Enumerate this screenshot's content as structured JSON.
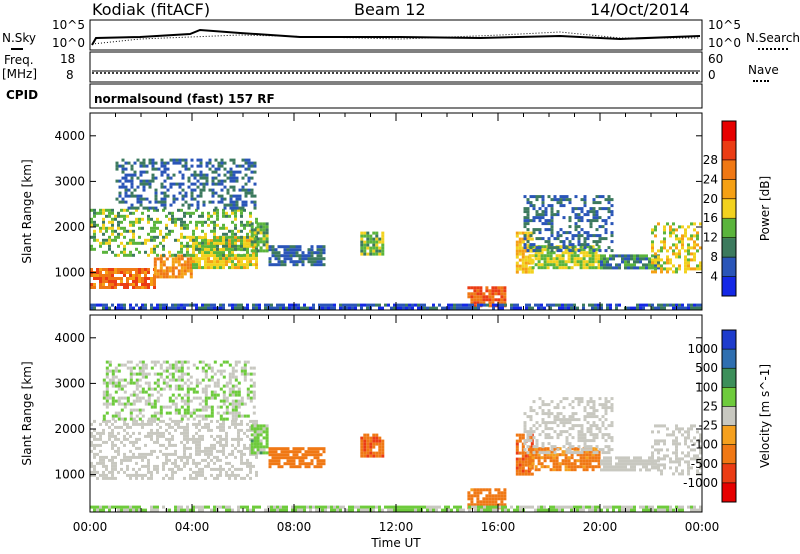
{
  "header": {
    "station": "Kodiak (fitACF)",
    "beam": "Beam 12",
    "date": "14/Oct/2014"
  },
  "status_panel": {
    "left_labels": {
      "nsky": "N.Sky",
      "freq": "Freq.",
      "freq_unit": "[MHz]",
      "cpid": "CPID"
    },
    "right_labels": {
      "nsearch": "N.Search",
      "nave": "Nave"
    },
    "noise_left_ticks": [
      "10^5",
      "10^0"
    ],
    "noise_right_ticks": [
      "10^5",
      "10^0"
    ],
    "freq_left_ticks": [
      "18",
      "8"
    ],
    "nave_right_ticks": [
      "60",
      "0"
    ],
    "cpid_text": "normalsound (fast) 157 RF"
  },
  "chart_data": [
    {
      "type": "heatmap",
      "name": "power",
      "ylabel": "Slant Range [km]",
      "xlabel": "",
      "xlim": [
        "00:00",
        "24:00"
      ],
      "ylim": [
        180,
        4500
      ],
      "y_ticks": [
        1000,
        2000,
        3000,
        4000
      ],
      "colorbar": {
        "label": "Power [dB]",
        "ticks": [
          "4",
          "8",
          "12",
          "16",
          "20",
          "24",
          "28"
        ],
        "colors": [
          "#1428e6",
          "#2a55b8",
          "#3c7a5e",
          "#5ab43c",
          "#f2d21e",
          "#f5a014",
          "#f07814",
          "#eb3c14",
          "#e60000"
        ]
      },
      "regions": [
        {
          "t": [
            0.0,
            2.5
          ],
          "r": [
            700,
            1100
          ],
          "level": 27
        },
        {
          "t": [
            2.5,
            4.0
          ],
          "r": [
            900,
            1400
          ],
          "level": 24
        },
        {
          "t": [
            4.0,
            6.5
          ],
          "r": [
            1100,
            1800
          ],
          "level": 18
        },
        {
          "t": [
            0.0,
            6.5
          ],
          "r": [
            1400,
            2400
          ],
          "level": 14
        },
        {
          "t": [
            1.0,
            6.5
          ],
          "r": [
            2400,
            3500
          ],
          "level": 8
        },
        {
          "t": [
            6.3,
            7.0
          ],
          "r": [
            1500,
            2100
          ],
          "level": 14
        },
        {
          "t": [
            7.0,
            9.2
          ],
          "r": [
            1200,
            1600
          ],
          "level": 8
        },
        {
          "t": [
            10.6,
            11.5
          ],
          "r": [
            1400,
            1900
          ],
          "level": 14
        },
        {
          "t": [
            14.8,
            16.3
          ],
          "r": [
            300,
            700
          ],
          "level": 28
        },
        {
          "t": [
            16.7,
            17.4
          ],
          "r": [
            1000,
            1900
          ],
          "level": 20
        },
        {
          "t": [
            17.2,
            20.0
          ],
          "r": [
            1100,
            1600
          ],
          "level": 16
        },
        {
          "t": [
            17.0,
            20.5
          ],
          "r": [
            1500,
            2700
          ],
          "level": 8
        },
        {
          "t": [
            20.0,
            22.3
          ],
          "r": [
            1100,
            1400
          ],
          "level": 10
        },
        {
          "t": [
            22.0,
            24.0
          ],
          "r": [
            1000,
            2100
          ],
          "level": 18
        },
        {
          "t": [
            0.0,
            24.0
          ],
          "r": [
            200,
            320
          ],
          "level": 6
        }
      ]
    },
    {
      "type": "heatmap",
      "name": "velocity",
      "ylabel": "Slant Range [km]",
      "xlabel": "Time UT",
      "xlim": [
        "00:00",
        "24:00"
      ],
      "ylim": [
        180,
        4500
      ],
      "x_ticks": [
        "00:00",
        "04:00",
        "08:00",
        "12:00",
        "16:00",
        "20:00",
        "00:00"
      ],
      "y_ticks": [
        1000,
        2000,
        3000,
        4000
      ],
      "colorbar": {
        "label": "Velocity [m s^-1]",
        "ticks": [
          "1000",
          "500",
          "100",
          "25",
          "-25",
          "-100",
          "-500",
          "-1000"
        ],
        "colors": [
          "#1e3ccd",
          "#2f6fb0",
          "#3c8f5a",
          "#6ecb3c",
          "#c8c8c0",
          "#f5a01e",
          "#f07814",
          "#eb3c14",
          "#e60000"
        ]
      },
      "regions": [
        {
          "t": [
            0.0,
            6.5
          ],
          "r": [
            900,
            2200
          ],
          "level": 0
        },
        {
          "t": [
            0.5,
            6.5
          ],
          "r": [
            2200,
            3500
          ],
          "level": 20
        },
        {
          "t": [
            6.3,
            7.0
          ],
          "r": [
            1500,
            2100
          ],
          "level": 60
        },
        {
          "t": [
            7.0,
            9.2
          ],
          "r": [
            1200,
            1600
          ],
          "level": -300
        },
        {
          "t": [
            10.6,
            11.5
          ],
          "r": [
            1400,
            1900
          ],
          "level": -400
        },
        {
          "t": [
            14.8,
            16.3
          ],
          "r": [
            300,
            700
          ],
          "level": -200
        },
        {
          "t": [
            16.7,
            17.4
          ],
          "r": [
            1000,
            1900
          ],
          "level": -400
        },
        {
          "t": [
            17.2,
            20.0
          ],
          "r": [
            1100,
            1600
          ],
          "level": -150
        },
        {
          "t": [
            17.0,
            20.5
          ],
          "r": [
            1500,
            2700
          ],
          "level": 0
        },
        {
          "t": [
            20.0,
            22.3
          ],
          "r": [
            1100,
            1400
          ],
          "level": 0
        },
        {
          "t": [
            22.0,
            24.0
          ],
          "r": [
            1000,
            2100
          ],
          "level": 0
        },
        {
          "t": [
            0.0,
            24.0
          ],
          "r": [
            200,
            320
          ],
          "level": 30
        }
      ]
    }
  ]
}
